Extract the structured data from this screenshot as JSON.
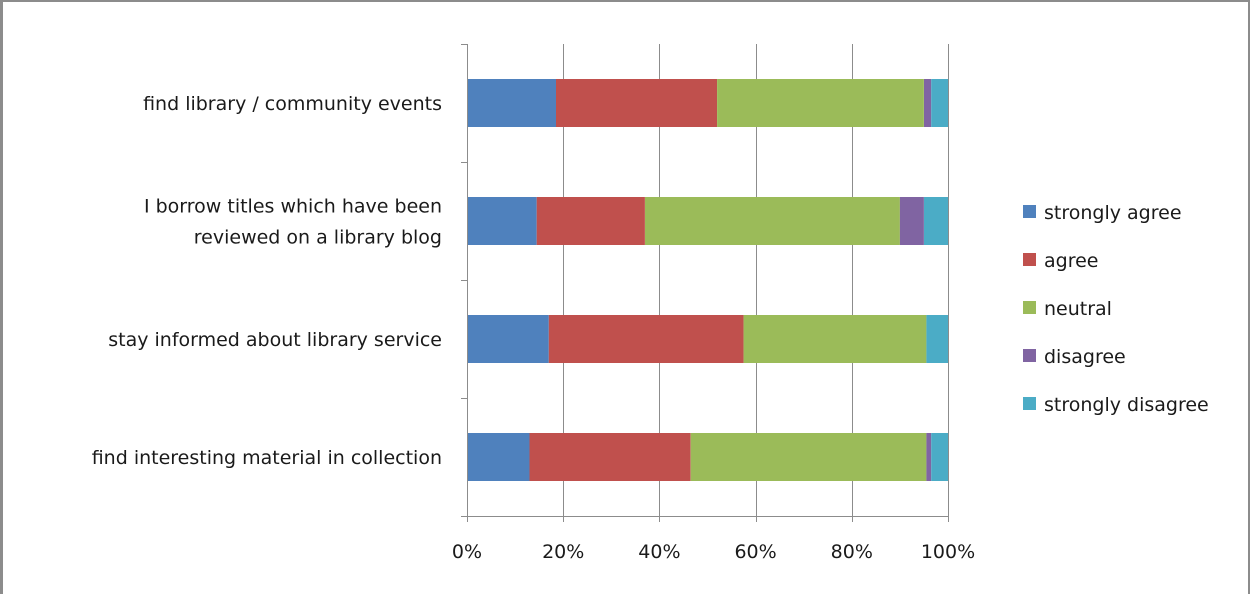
{
  "chart_data": {
    "type": "bar",
    "orientation": "horizontal",
    "stacked": "percent",
    "categories": [
      "find library / community events",
      [
        "I borrow titles which have been",
        "reviewed on a library blog"
      ],
      "stay informed about library service",
      "find interesting material in collection"
    ],
    "series": [
      {
        "name": "strongly agree",
        "color": "#4f81bd",
        "values": [
          18.5,
          14.5,
          17,
          13
        ]
      },
      {
        "name": "agree",
        "color": "#c0504d",
        "values": [
          33.5,
          22.5,
          40.5,
          33.5
        ]
      },
      {
        "name": "neutral",
        "color": "#9bbb59",
        "values": [
          43,
          53,
          38,
          49
        ]
      },
      {
        "name": "disagree",
        "color": "#8064a2",
        "values": [
          1.5,
          5,
          0,
          1
        ]
      },
      {
        "name": "strongly disagree",
        "color": "#4bacc6",
        "values": [
          3.5,
          5,
          4.5,
          3.5
        ]
      }
    ],
    "xticks": [
      "0%",
      "20%",
      "40%",
      "60%",
      "80%",
      "100%"
    ],
    "xlim": [
      0,
      100
    ],
    "grid": true,
    "legend_position": "right"
  }
}
